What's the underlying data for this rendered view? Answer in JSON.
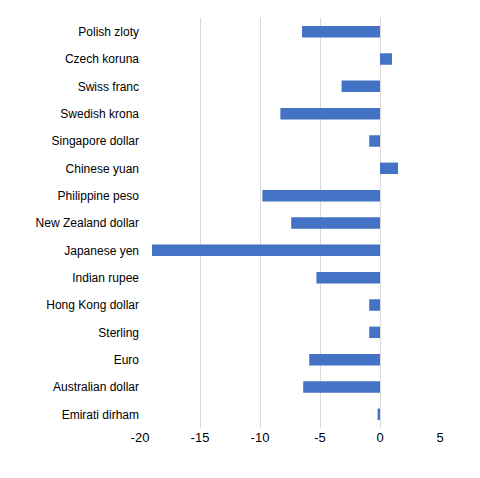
{
  "chart_data": {
    "type": "bar",
    "orientation": "horizontal",
    "categories": [
      "Polish zloty",
      "Czech koruna",
      "Swiss franc",
      "Swedish krona",
      "Singapore dollar",
      "Chinese yuan",
      "Philippine peso",
      "New Zealand dollar",
      "Japanese yen",
      "Indian rupee",
      "Hong Kong dollar",
      "Sterling",
      "Euro",
      "Australian dollar",
      "Emirati dirham"
    ],
    "values": [
      -6.5,
      1.0,
      -3.2,
      -8.3,
      -0.9,
      1.5,
      -9.8,
      -7.4,
      -19.0,
      -5.3,
      -0.9,
      -0.9,
      -5.9,
      -6.4,
      -0.2
    ],
    "color": "#4472c4",
    "xlim": [
      -20,
      5
    ],
    "xticks": [
      -20,
      -15,
      -10,
      -5,
      0,
      5
    ],
    "grid": true
  }
}
